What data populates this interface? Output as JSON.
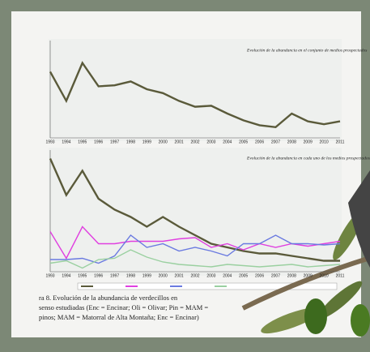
{
  "chart_data": [
    {
      "type": "line",
      "title": "Evolución de la abundancia en el conjunto de medios prospectados",
      "categories": [
        "1993",
        "1994",
        "1995",
        "1996",
        "1997",
        "1998",
        "1999",
        "2000",
        "2001",
        "2002",
        "2003",
        "2004",
        "2005",
        "2006",
        "2007",
        "2008",
        "2009",
        "2010",
        "2011"
      ],
      "ylim": [
        0,
        100
      ],
      "series": [
        {
          "color": "#5a5a3a",
          "values": [
            68,
            38,
            77,
            53,
            54,
            58,
            50,
            46,
            38,
            32,
            33,
            25,
            18,
            13,
            11,
            25,
            17,
            14,
            17
          ]
        }
      ]
    },
    {
      "type": "line",
      "title": "Evolución de la abundancia en cada uno de los medios prospectados",
      "categories": [
        "1993",
        "1994",
        "1995",
        "1996",
        "1997",
        "1998",
        "1999",
        "2000",
        "2001",
        "2002",
        "2003",
        "2004",
        "2005",
        "2006",
        "2007",
        "2008",
        "2009",
        "2010",
        "2011"
      ],
      "ylim": [
        0,
        100
      ],
      "series": [
        {
          "color": "#5a5a3a",
          "values": [
            93,
            63,
            83,
            60,
            51,
            45,
            37,
            45,
            37,
            30,
            23,
            20,
            17,
            15,
            15,
            13,
            11,
            9,
            9
          ]
        },
        {
          "color": "#e040e0",
          "values": [
            33,
            11,
            37,
            23,
            23,
            25,
            25,
            25,
            27,
            28,
            20,
            23,
            18,
            23,
            20,
            23,
            21,
            23,
            25
          ]
        },
        {
          "color": "#6a7ae0",
          "values": [
            10,
            10,
            11,
            7,
            13,
            30,
            20,
            23,
            17,
            20,
            17,
            13,
            23,
            23,
            30,
            23,
            23,
            22,
            23
          ]
        },
        {
          "color": "#9ad0a0",
          "values": [
            7,
            9,
            3,
            10,
            11,
            18,
            12,
            8,
            6,
            5,
            4,
            6,
            5,
            4,
            5,
            6,
            4,
            5,
            6
          ]
        }
      ]
    }
  ],
  "caption": [
    "ra 8. Evolución de la abundancia de verdecillos en",
    "senso estudiadas (Enc = Encinar; Oli = Olivar; Pin = MAM =",
    "pinos; MAM = Matorral de Alta Montaña; Enc = Encinar)"
  ]
}
